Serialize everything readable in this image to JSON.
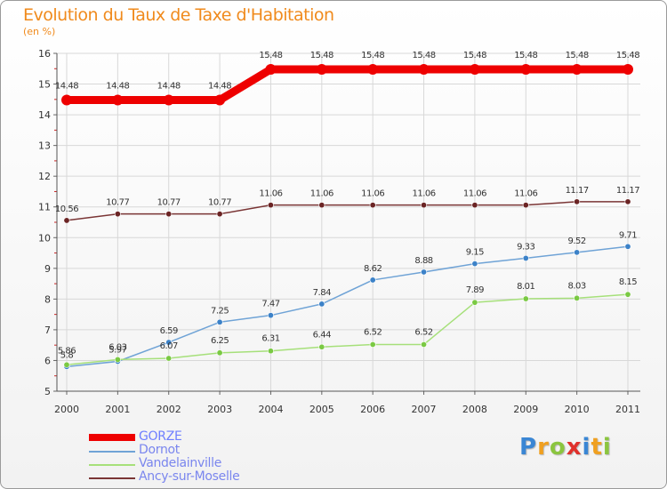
{
  "chart_data": {
    "type": "line",
    "title": "Evolution du Taux de Taxe d'Habitation",
    "ylabel": "(en %)",
    "x": [
      "2000",
      "2001",
      "2002",
      "2003",
      "2004",
      "2005",
      "2006",
      "2007",
      "2008",
      "2009",
      "2010",
      "2011"
    ],
    "ylim": [
      5,
      16
    ],
    "yticks": [
      5,
      6,
      7,
      8,
      9,
      10,
      11,
      12,
      13,
      14,
      15,
      16
    ],
    "grid": true,
    "legend_position": "bottom-left",
    "series": [
      {
        "name": "GORZE",
        "color": "#ee0000",
        "values": [
          14.48,
          14.48,
          14.48,
          14.48,
          15.48,
          15.48,
          15.48,
          15.48,
          15.48,
          15.48,
          15.48,
          15.48
        ],
        "labels": [
          "14.48",
          "14.48",
          "14.48",
          "14.48",
          "15.48",
          "15.48",
          "15.48",
          "15.48",
          "15.48",
          "15.48",
          "15.48",
          "15.48"
        ]
      },
      {
        "name": "Dornot",
        "color": "#6fa3d6",
        "marker": "#3c82c8",
        "values": [
          5.8,
          5.97,
          6.59,
          7.25,
          7.47,
          7.84,
          8.62,
          8.88,
          9.15,
          9.33,
          9.52,
          9.71
        ],
        "labels": [
          "5.8",
          "5.97",
          "6.59",
          "7.25",
          "7.47",
          "7.84",
          "8.62",
          "8.88",
          "9.15",
          "9.33",
          "9.52",
          "9.71"
        ]
      },
      {
        "name": "Vandelainville",
        "color": "#a6e07a",
        "marker": "#7ac943",
        "values": [
          5.86,
          6.03,
          6.07,
          6.25,
          6.31,
          6.44,
          6.52,
          6.52,
          7.89,
          8.01,
          8.03,
          8.15
        ],
        "labels": [
          "5.86",
          "6.03",
          "6.07",
          "6.25",
          "6.31",
          "6.44",
          "6.52",
          "6.52",
          "7.89",
          "8.01",
          "8.03",
          "8.15"
        ]
      },
      {
        "name": "Ancy-sur-Moselle",
        "color": "#7a3535",
        "marker": "#6b2424",
        "values": [
          10.56,
          10.77,
          10.77,
          10.77,
          11.06,
          11.06,
          11.06,
          11.06,
          11.06,
          11.06,
          11.17,
          11.17
        ],
        "labels": [
          "10.56",
          "10.77",
          "10.77",
          "10.77",
          "11.06",
          "11.06",
          "11.06",
          "11.06",
          "11.06",
          "11.06",
          "11.17",
          "11.17"
        ]
      }
    ]
  },
  "legend": [
    "GORZE",
    "Dornot",
    "Vandelainville",
    "Ancy-sur-Moselle"
  ],
  "logo": {
    "letters": [
      "P",
      "r",
      "o",
      "x",
      "i",
      "t",
      "i"
    ],
    "colors": [
      "#3a86d4",
      "#f0a020",
      "#8bc53f",
      "#e0312c",
      "#3a86d4",
      "#f0a020",
      "#8bc53f"
    ]
  }
}
